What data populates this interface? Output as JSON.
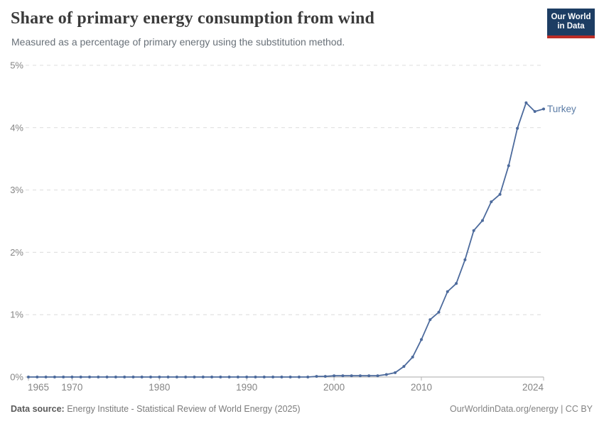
{
  "header": {
    "title": "Share of primary energy consumption from wind",
    "subtitle": "Measured as a percentage of primary energy using the substitution method.",
    "logo": {
      "line1": "Our World",
      "line2": "in Data"
    }
  },
  "footer": {
    "source_label": "Data source:",
    "source_value": " Energy Institute - Statistical Review of World Energy (2025)",
    "credit": "OurWorldinData.org/energy | CC BY"
  },
  "colors": {
    "line": "#4c6a9c",
    "series_label": "#5b7ca6",
    "grid": "#dcdcdc",
    "zero_line": "#a9a9a9",
    "tick": "#b0b0b0",
    "axis_text": "#858585",
    "logo_bg": "#1d3d63",
    "logo_stripe": "#bc2d26"
  },
  "chart_data": {
    "type": "line",
    "title": "Share of primary energy consumption from wind",
    "xlabel": "",
    "ylabel": "",
    "ylim": [
      0,
      5
    ],
    "xlim": [
      1965,
      2024
    ],
    "grid": "horizontal-dashed",
    "legend_position": "end-of-line",
    "yticks": [
      {
        "value": 0,
        "label": "0%"
      },
      {
        "value": 1,
        "label": "1%"
      },
      {
        "value": 2,
        "label": "2%"
      },
      {
        "value": 3,
        "label": "3%"
      },
      {
        "value": 4,
        "label": "4%"
      },
      {
        "value": 5,
        "label": "5%"
      }
    ],
    "xticks": [
      {
        "year": 1965,
        "label": "1965"
      },
      {
        "year": 1970,
        "label": "1970"
      },
      {
        "year": 1980,
        "label": "1980"
      },
      {
        "year": 1990,
        "label": "1990"
      },
      {
        "year": 2000,
        "label": "2000"
      },
      {
        "year": 2010,
        "label": "2010"
      },
      {
        "year": 2024,
        "label": "2024"
      }
    ],
    "x": [
      1965,
      1966,
      1967,
      1968,
      1969,
      1970,
      1971,
      1972,
      1973,
      1974,
      1975,
      1976,
      1977,
      1978,
      1979,
      1980,
      1981,
      1982,
      1983,
      1984,
      1985,
      1986,
      1987,
      1988,
      1989,
      1990,
      1991,
      1992,
      1993,
      1994,
      1995,
      1996,
      1997,
      1998,
      1999,
      2000,
      2001,
      2002,
      2003,
      2004,
      2005,
      2006,
      2007,
      2008,
      2009,
      2010,
      2011,
      2012,
      2013,
      2014,
      2015,
      2016,
      2017,
      2018,
      2019,
      2020,
      2021,
      2022,
      2023,
      2024
    ],
    "series": [
      {
        "name": "Turkey",
        "values": [
          0,
          0,
          0,
          0,
          0,
          0,
          0,
          0,
          0,
          0,
          0,
          0,
          0,
          0,
          0,
          0,
          0,
          0,
          0,
          0,
          0,
          0,
          0,
          0,
          0,
          0,
          0,
          0,
          0,
          0,
          0,
          0,
          0,
          0.01,
          0.01,
          0.02,
          0.02,
          0.02,
          0.02,
          0.02,
          0.02,
          0.04,
          0.07,
          0.17,
          0.32,
          0.6,
          0.92,
          1.04,
          1.37,
          1.5,
          1.88,
          2.35,
          2.51,
          2.81,
          2.93,
          3.39,
          3.99,
          4.4,
          4.26,
          4.3
        ]
      }
    ]
  }
}
